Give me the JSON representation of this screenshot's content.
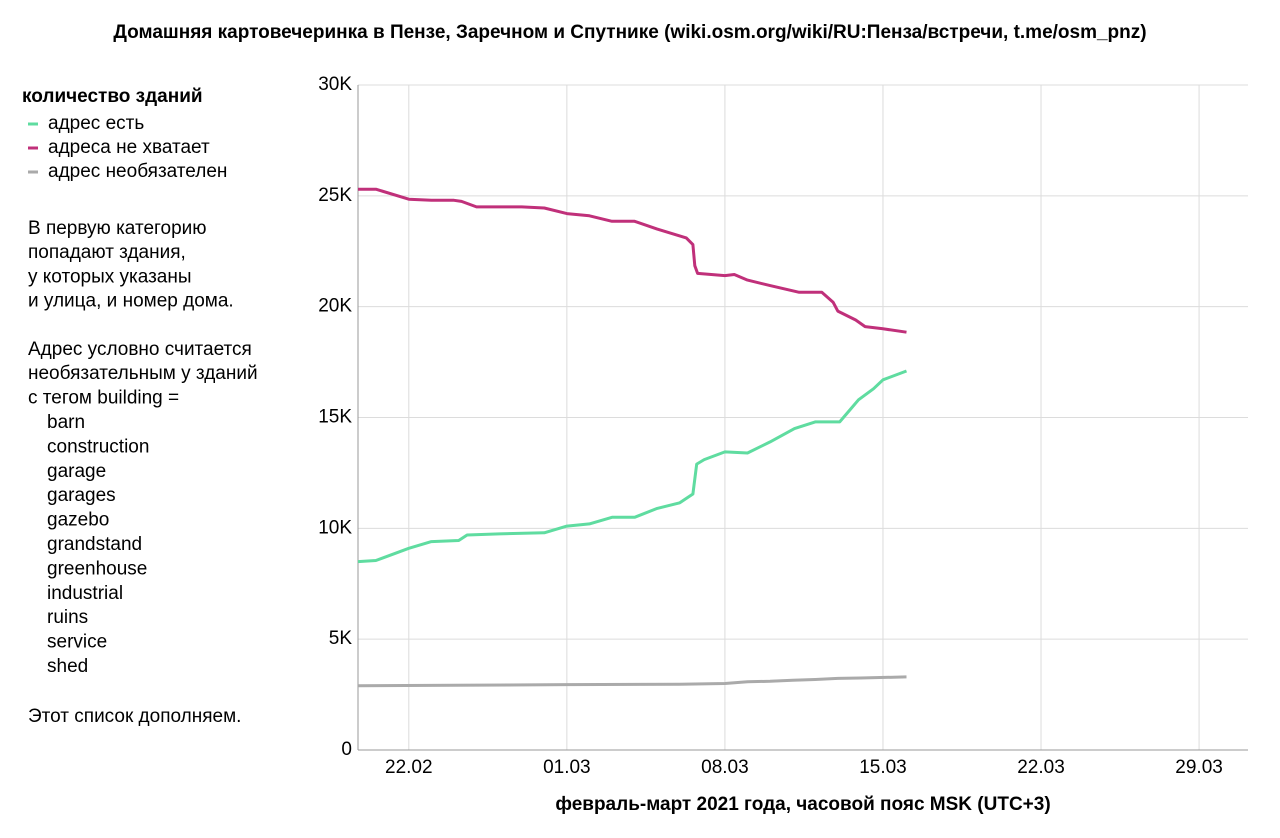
{
  "chart_data": {
    "type": "line",
    "title": "Домашняя картовечеринка в Пензе, Заречном и Спутнике (wiki.osm.org/wiki/RU:Пенза/встречи, t.me/osm_pnz)",
    "x_label": "февраль-март 2021 года, часовой пояс MSK (UTC+3)",
    "legend_title": "количество зданий",
    "legend_position": "left",
    "grid": true,
    "xlim": [
      "2021-02-19T18:00",
      "2021-03-31T04:00"
    ],
    "xticks": [
      {
        "value": "2021-02-22T00:00",
        "label": "22.02"
      },
      {
        "value": "2021-03-01T00:00",
        "label": "01.03"
      },
      {
        "value": "2021-03-08T00:00",
        "label": "08.03"
      },
      {
        "value": "2021-03-15T00:00",
        "label": "15.03"
      },
      {
        "value": "2021-03-22T00:00",
        "label": "22.03"
      },
      {
        "value": "2021-03-29T00:00",
        "label": "29.03"
      }
    ],
    "ylim": [
      0,
      30000
    ],
    "yticks": [
      0,
      {
        "value": 5000,
        "label": "5K"
      },
      {
        "value": 10000,
        "label": "10K"
      },
      {
        "value": 15000,
        "label": "15K"
      },
      {
        "value": 20000,
        "label": "20K"
      },
      {
        "value": 25000,
        "label": "25K"
      },
      {
        "value": 30000,
        "label": "30K"
      }
    ],
    "series": [
      {
        "name": "адрес есть",
        "color": "#5fdca0",
        "x": [
          "2021-02-19T18:00",
          "2021-02-20T13:00",
          "2021-02-22T00:00",
          "2021-02-23T00:00",
          "2021-02-24T05:00",
          "2021-02-24T14:00",
          "2021-02-26T00:00",
          "2021-02-28T00:00",
          "2021-03-01T00:00",
          "2021-03-02T00:00",
          "2021-03-03T00:00",
          "2021-03-04T00:00",
          "2021-03-05T00:00",
          "2021-03-06T00:00",
          "2021-03-06T14:00",
          "2021-03-06T18:00",
          "2021-03-07T02:00",
          "2021-03-08T00:00",
          "2021-03-09T00:00",
          "2021-03-10T00:00",
          "2021-03-11T02:00",
          "2021-03-12T00:00",
          "2021-03-13T02:00",
          "2021-03-13T14:00",
          "2021-03-13T22:00",
          "2021-03-14T14:00",
          "2021-03-15T00:00",
          "2021-03-16T01:00"
        ],
        "values": [
          8500,
          8550,
          9100,
          9400,
          9450,
          9700,
          9750,
          9800,
          10100,
          10200,
          10500,
          10500,
          10900,
          11150,
          11550,
          12900,
          13100,
          13450,
          13400,
          13900,
          14500,
          14800,
          14800,
          15400,
          15800,
          16300,
          16700,
          17100
        ]
      },
      {
        "name": "адреса не хватает",
        "color": "#c0307a",
        "x": [
          "2021-02-19T18:00",
          "2021-02-20T13:00",
          "2021-02-22T00:00",
          "2021-02-23T00:00",
          "2021-02-24T00:00",
          "2021-02-24T08:00",
          "2021-02-25T00:00",
          "2021-02-27T00:00",
          "2021-02-28T00:00",
          "2021-03-01T00:00",
          "2021-03-02T00:00",
          "2021-03-03T00:00",
          "2021-03-04T00:00",
          "2021-03-05T00:00",
          "2021-03-06T07:00",
          "2021-03-06T14:00",
          "2021-03-06T16:00",
          "2021-03-06T19:00",
          "2021-03-08T00:00",
          "2021-03-08T10:00",
          "2021-03-09T00:00",
          "2021-03-10T00:00",
          "2021-03-11T07:00",
          "2021-03-12T07:00",
          "2021-03-12T19:00",
          "2021-03-13T00:00",
          "2021-03-13T19:00",
          "2021-03-14T05:00",
          "2021-03-15T00:00",
          "2021-03-16T01:00"
        ],
        "values": [
          25300,
          25300,
          24850,
          24800,
          24800,
          24750,
          24500,
          24500,
          24450,
          24200,
          24100,
          23850,
          23850,
          23500,
          23100,
          22800,
          21850,
          21500,
          21400,
          21450,
          21200,
          20950,
          20650,
          20650,
          20200,
          19800,
          19400,
          19100,
          19000,
          18850
        ]
      },
      {
        "name": "адрес необязателен",
        "color": "#aaaaaa",
        "x": [
          "2021-02-19T18:00",
          "2021-02-24T00:00",
          "2021-03-01T00:00",
          "2021-03-06T00:00",
          "2021-03-08T00:00",
          "2021-03-09T00:00",
          "2021-03-10T00:00",
          "2021-03-11T00:00",
          "2021-03-12T00:00",
          "2021-03-13T00:00",
          "2021-03-14T00:00",
          "2021-03-16T01:00"
        ],
        "values": [
          2900,
          2920,
          2950,
          2970,
          3000,
          3080,
          3100,
          3150,
          3180,
          3230,
          3250,
          3300
        ]
      }
    ],
    "note_1": [
      "В первую категорию",
      "попадают здания,",
      "у которых указаны",
      "и улица, и номер дома."
    ],
    "note_2": [
      "Адрес условно считается",
      "необязательным у зданий",
      "с тегом building ="
    ],
    "building_tags": [
      "barn",
      "construction",
      "garage",
      "garages",
      "gazebo",
      "grandstand",
      "greenhouse",
      "industrial",
      "ruins",
      "service",
      "shed"
    ],
    "note_3": "Этот список дополняем."
  }
}
